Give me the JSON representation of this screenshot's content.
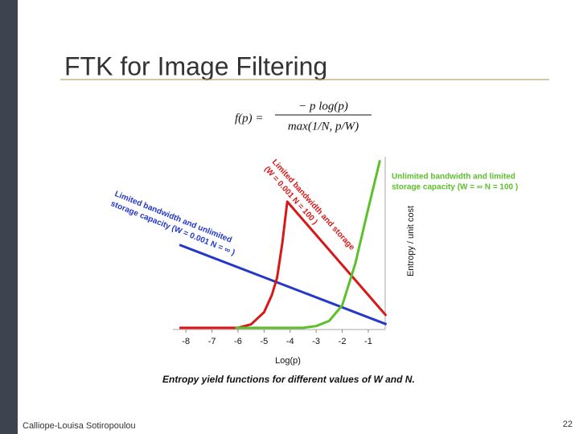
{
  "slide": {
    "title": "FTK for Image Filtering",
    "formula": {
      "lhs": "f(p) =",
      "numerator": "− p log(p)",
      "denominator": "max(1/N, p/W)"
    },
    "author": "Calliope-Louisa Sotiropoulou",
    "page": "22"
  },
  "chart_data": {
    "type": "line",
    "xlabel": "Log(p)",
    "ylabel": "Entropy / unit cost",
    "caption": "Entropy yield functions for different values of W and N.",
    "xlim": [
      -8.5,
      -0.35
    ],
    "xticks": [
      -8,
      -7,
      -6,
      -5,
      -4,
      -3,
      -2,
      -1
    ],
    "ylim": [
      0,
      1
    ],
    "series": [
      {
        "name": "Limited bandwidth and unlimited storage capacity",
        "color": "#2438c8",
        "x": [
          -8.25,
          -0.3
        ],
        "values": [
          0.49,
          0.03
        ]
      },
      {
        "name": "Limited bandwidth and storage",
        "color": "#d81818",
        "x": [
          -8.25,
          -6,
          -5.5,
          -5,
          -4.7,
          -4.5,
          -4.3,
          -4.11,
          -0.31
        ],
        "values": [
          0.01,
          0.01,
          0.03,
          0.1,
          0.2,
          0.3,
          0.5,
          0.74,
          0.08
        ]
      },
      {
        "name": "Unlimited bandwidth and limited storage capacity",
        "color": "#5cc02c",
        "x": [
          -6.1,
          -3.5,
          -3,
          -2.5,
          -2,
          -1.5,
          -1,
          -0.55
        ],
        "values": [
          0.01,
          0.01,
          0.02,
          0.05,
          0.14,
          0.38,
          0.7,
          0.98
        ]
      }
    ],
    "annotations": [
      {
        "lines": [
          "Limited bandwidth and unlimited",
          "storage capacity (W = 0.001 N = ∞ )"
        ],
        "color": "#2438c8"
      },
      {
        "lines": [
          "Limited bandwidth and storage",
          "(W = 0.001 N = 100 )"
        ],
        "color": "#d81818"
      },
      {
        "lines": [
          "Unlimited bandwidth and limited",
          "storage capacity (W = ∞ N = 100 )"
        ],
        "color": "#5cc02c"
      }
    ]
  }
}
